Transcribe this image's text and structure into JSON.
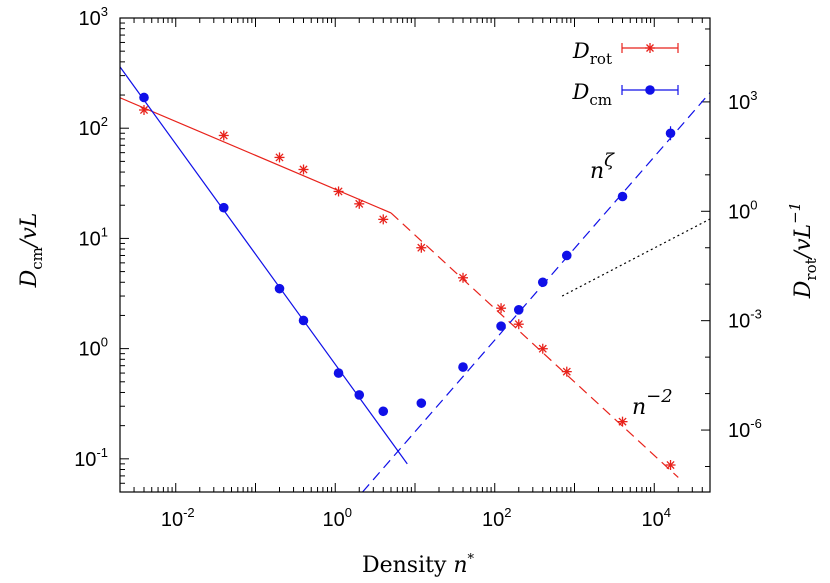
{
  "chart_data": {
    "type": "scatter",
    "xlabel": "Density n*",
    "ylabel_left": "D_cm/vL",
    "ylabel_right": "D_rot/vL^-1",
    "x_scale": "log",
    "y_scale_left": "log",
    "y_scale_right": "log",
    "xlim": [
      0.002,
      50000
    ],
    "ylim_left": [
      0.05,
      1000
    ],
    "ylim_right": [
      2e-08,
      200000
    ],
    "x_ticks": [
      {
        "base": "10",
        "exp": "-2",
        "value": 0.01
      },
      {
        "base": "10",
        "exp": "0",
        "value": 1
      },
      {
        "base": "10",
        "exp": "2",
        "value": 100
      },
      {
        "base": "10",
        "exp": "4",
        "value": 10000
      }
    ],
    "y_left_ticks": [
      {
        "base": "10",
        "exp": "-1",
        "value": 0.1
      },
      {
        "base": "10",
        "exp": "0",
        "value": 1
      },
      {
        "base": "10",
        "exp": "1",
        "value": 10
      },
      {
        "base": "10",
        "exp": "2",
        "value": 100
      },
      {
        "base": "10",
        "exp": "3",
        "value": 1000
      }
    ],
    "y_right_ticks": [
      {
        "base": "10",
        "exp": "-6",
        "value": 1e-06
      },
      {
        "base": "10",
        "exp": "-3",
        "value": 0.001
      },
      {
        "base": "10",
        "exp": "0",
        "value": 1
      },
      {
        "base": "10",
        "exp": "3",
        "value": 1000
      }
    ],
    "legend_position": "top-right",
    "series": [
      {
        "name": "D_rot",
        "axis": "right",
        "marker": "star",
        "color": "#e8221b",
        "x": [
          0.004,
          0.04,
          0.2,
          0.4,
          1.1,
          2,
          4,
          12,
          40,
          120,
          200,
          400,
          800,
          4000,
          16000
        ],
        "y": [
          600,
          120,
          30,
          14,
          3.5,
          1.6,
          0.6,
          0.1,
          0.015,
          0.0022,
          0.0008,
          0.00017,
          4e-05,
          1.7e-06,
          1.1e-07
        ]
      },
      {
        "name": "D_cm",
        "axis": "left",
        "marker": "circle",
        "color": "#1010e8",
        "x": [
          0.004,
          0.04,
          0.2,
          0.4,
          1.1,
          2,
          4,
          12,
          40,
          120,
          200,
          400,
          800,
          4000,
          16000
        ],
        "y": [
          190,
          19,
          3.5,
          1.8,
          0.6,
          0.38,
          0.27,
          0.32,
          0.68,
          1.6,
          2.25,
          4.0,
          7.0,
          24,
          90
        ]
      }
    ],
    "fit_lines": [
      {
        "series": "D_rot",
        "style": "solid",
        "color": "#e8221b",
        "x_start": 0.002,
        "x_end": 5,
        "y_start": 1300,
        "y_end": 0.9
      },
      {
        "series": "D_rot",
        "style": "dashed",
        "color": "#e8221b",
        "x_start": 5,
        "x_end": 20000,
        "y_start": 0.9,
        "y_end": 5e-08
      },
      {
        "series": "D_cm",
        "style": "solid",
        "color": "#1010e8",
        "x_start": 0.002,
        "x_end": 8,
        "y_start": 360,
        "y_end": 0.09
      },
      {
        "series": "D_cm",
        "style": "dashed",
        "color": "#1010e8",
        "x_start": 2.2,
        "x_end": 50000,
        "y_start": 0.05,
        "y_end": 210
      },
      {
        "series": "guide",
        "style": "dotted",
        "color": "#000000",
        "x_start": 700,
        "x_end": 50000,
        "y_start": 3.0,
        "y_end": 15
      }
    ],
    "annotations": [
      {
        "text": "n^ζ"
      },
      {
        "text": "n^-2"
      }
    ]
  }
}
